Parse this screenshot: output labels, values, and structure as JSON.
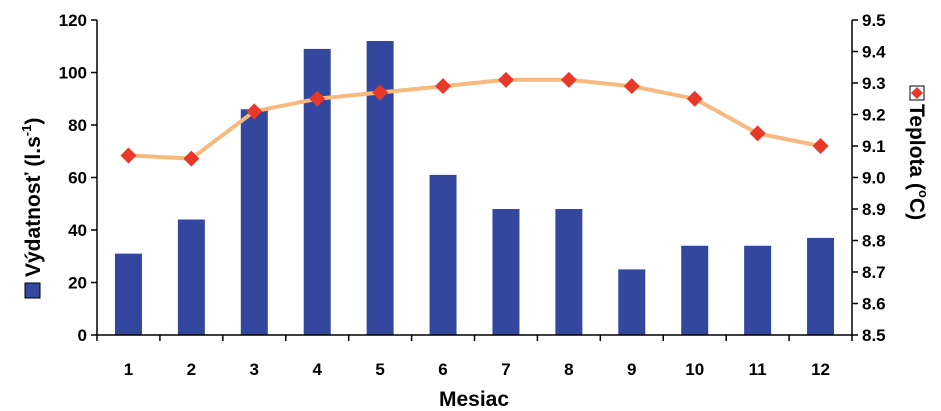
{
  "chart_data": {
    "type": "bar",
    "categories": [
      "1",
      "2",
      "3",
      "4",
      "5",
      "6",
      "7",
      "8",
      "9",
      "10",
      "11",
      "12"
    ],
    "xlabel": "Mesiac",
    "series": [
      {
        "name": "Výdatnosť (l.s-1)",
        "kind": "bar",
        "axis": "left",
        "color": "#34479e",
        "values": [
          31,
          44,
          86,
          109,
          112,
          61,
          48,
          48,
          25,
          34,
          34,
          37
        ]
      },
      {
        "name": "Teplota (°C)",
        "kind": "line",
        "axis": "right",
        "line_color": "#f7b97d",
        "marker_color": "#e8382a",
        "marker": "diamond",
        "values": [
          9.07,
          9.06,
          9.21,
          9.25,
          9.27,
          9.29,
          9.31,
          9.31,
          9.29,
          9.25,
          9.14,
          9.1
        ]
      }
    ],
    "y_left": {
      "label_prefix": "Výdatnosť (l.s",
      "label_sup": "-1",
      "label_suffix": ")",
      "range": [
        0,
        120
      ],
      "ticks": [
        "0",
        "20",
        "40",
        "60",
        "80",
        "100",
        "120"
      ]
    },
    "y_right": {
      "label_prefix": "Teplota (",
      "label_sup": "o",
      "label_suffix": "C)",
      "range": [
        8.5,
        9.5
      ],
      "ticks": [
        "8.5",
        "8.6",
        "8.7",
        "8.8",
        "8.9",
        "9.0",
        "9.1",
        "9.2",
        "9.3",
        "9.4",
        "9.5"
      ]
    },
    "grid": false
  }
}
